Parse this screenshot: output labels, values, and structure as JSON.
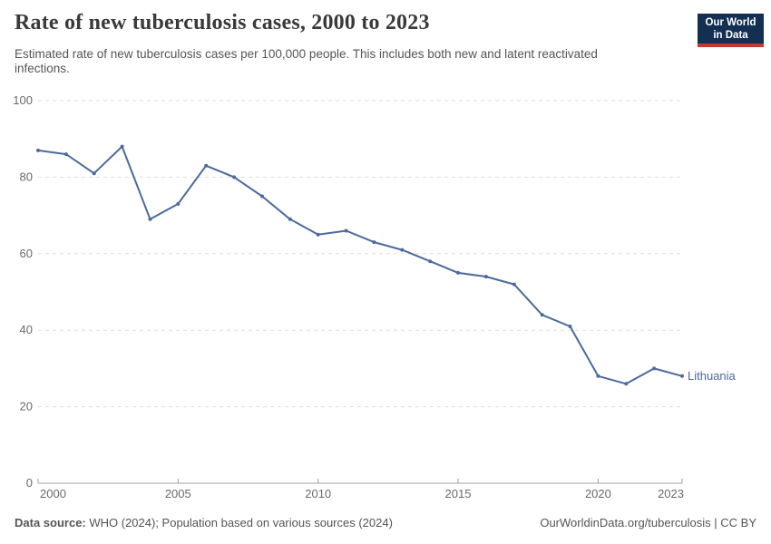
{
  "header": {
    "title": "Rate of new tuberculosis cases, 2000 to 2023",
    "subtitle": "Estimated rate of new tuberculosis cases per 100,000 people. This includes both new and latent reactivated infections.",
    "logo": {
      "line1": "Our World",
      "line2": "in Data",
      "bg_color": "#132f52",
      "bar_color": "#c4392f"
    }
  },
  "chart_data": {
    "type": "line",
    "title": "Rate of new tuberculosis cases, 2000 to 2023",
    "x": [
      2000,
      2001,
      2002,
      2003,
      2004,
      2005,
      2006,
      2007,
      2008,
      2009,
      2010,
      2011,
      2012,
      2013,
      2014,
      2015,
      2016,
      2017,
      2018,
      2019,
      2020,
      2021,
      2022,
      2023
    ],
    "series": [
      {
        "name": "Lithuania",
        "color": "#4c6a9c",
        "values": [
          87,
          86,
          81,
          88,
          69,
          73,
          83,
          80,
          75,
          69,
          65,
          66,
          63,
          61,
          58,
          55,
          54,
          52,
          44,
          41,
          28,
          26,
          30,
          28
        ]
      }
    ],
    "xlabel": "",
    "ylabel": "",
    "xlim": [
      2000,
      2023
    ],
    "ylim": [
      0,
      100
    ],
    "x_ticks": [
      2000,
      2005,
      2010,
      2015,
      2020,
      2023
    ],
    "y_ticks": [
      0,
      20,
      40,
      60,
      80,
      100
    ],
    "grid": "horizontal-dashed",
    "legend_position": "end-of-line-label"
  },
  "footer": {
    "source_label": "Data source:",
    "source_text": " WHO (2024); Population based on various sources (2024)",
    "link": "OurWorldinData.org/tuberculosis | CC BY"
  }
}
